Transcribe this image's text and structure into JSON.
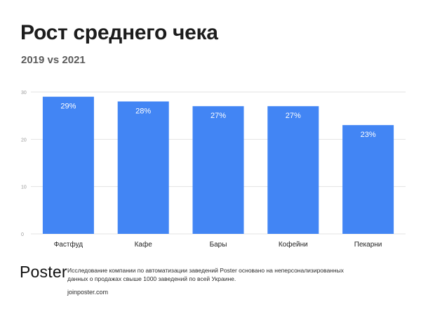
{
  "header": {
    "title": "Рост среднего чека",
    "subtitle": "2019 vs 2021"
  },
  "chart_data": {
    "type": "bar",
    "categories": [
      "Фастфуд",
      "Кафе",
      "Бары",
      "Кофейни",
      "Пекарни"
    ],
    "values": [
      29,
      28,
      27,
      27,
      23
    ],
    "data_labels": [
      "29%",
      "28%",
      "27%",
      "27%",
      "23%"
    ],
    "y_ticks": [
      0,
      10,
      20,
      30
    ],
    "y_tick_labels": [
      "0",
      "10",
      "20",
      "30"
    ],
    "ylim": [
      0,
      30
    ],
    "grid": true,
    "legend": "none",
    "bar_color": "#4285f4",
    "label_color": "#ffffff"
  },
  "footer": {
    "logo_text": "Poster",
    "note": "Исследование компании по автоматизации заведений Poster основано на неперсонализированных данных о продажах свыше 1000 заведений по всей Украине.",
    "website": "joinposter.com"
  }
}
